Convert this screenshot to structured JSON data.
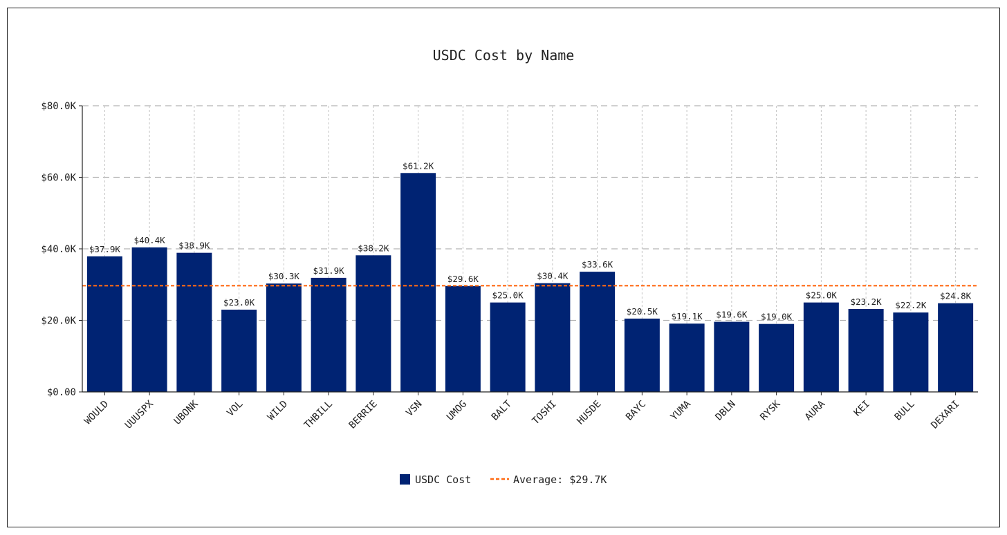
{
  "chart_data": {
    "type": "bar",
    "title": "USDC Cost by Name",
    "xlabel": "",
    "ylabel": "",
    "categories": [
      "WOULD",
      "UUUSPX",
      "UBONK",
      "VOL",
      "WILD",
      "THBILL",
      "BERRIE",
      "VSN",
      "UMOG",
      "BALT",
      "TOSHI",
      "HUSDE",
      "BAYC",
      "YUMA",
      "DBLN",
      "RYSK",
      "AURA",
      "KEI",
      "BULL",
      "DEXARI"
    ],
    "series": [
      {
        "name": "USDC Cost",
        "color": "#002373",
        "values": [
          37900,
          40400,
          38900,
          23000,
          30300,
          31900,
          38200,
          61200,
          29600,
          25000,
          30400,
          33600,
          20500,
          19100,
          19600,
          19000,
          25000,
          23200,
          22200,
          24800
        ],
        "labels": [
          "$37.9K",
          "$40.4K",
          "$38.9K",
          "$23.0K",
          "$30.3K",
          "$31.9K",
          "$38.2K",
          "$61.2K",
          "$29.6K",
          "$25.0K",
          "$30.4K",
          "$33.6K",
          "$20.5K",
          "$19.1K",
          "$19.6K",
          "$19.0K",
          "$25.0K",
          "$23.2K",
          "$22.2K",
          "$24.8K"
        ]
      }
    ],
    "average": {
      "value": 29700,
      "label": "Average: $29.7K",
      "color": "#ff6a13"
    },
    "ylim": [
      0,
      80000
    ],
    "yticks": [
      0,
      20000,
      40000,
      60000,
      80000
    ],
    "ytick_labels": [
      "$0.00",
      "$20.0K",
      "$40.0K",
      "$60.0K",
      "$80.0K"
    ],
    "grid": true,
    "legend_position": "bottom-center"
  }
}
